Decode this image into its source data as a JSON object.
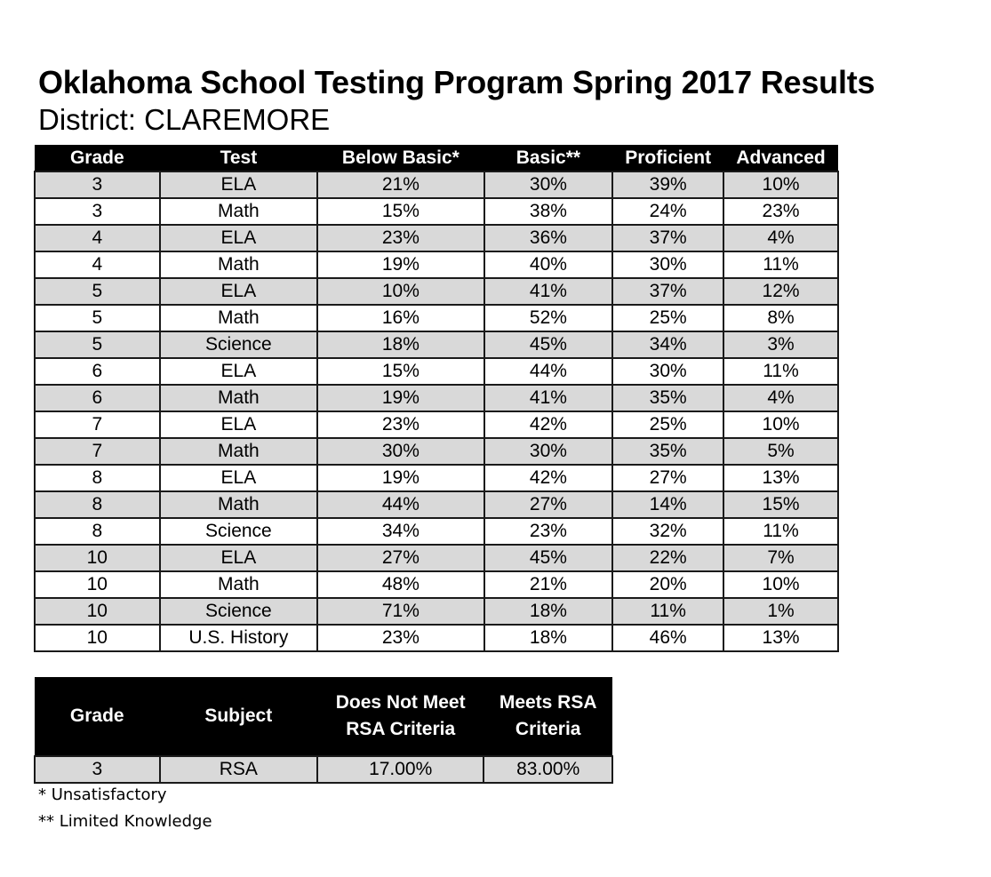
{
  "header": {
    "title": "Oklahoma School Testing Program Spring 2017 Results",
    "subtitle": "District: CLAREMORE"
  },
  "main_table": {
    "columns": [
      "Grade",
      "Test",
      "Below Basic*",
      "Basic**",
      "Proficient",
      "Advanced"
    ],
    "rows": [
      [
        "3",
        "ELA",
        "21%",
        "30%",
        "39%",
        "10%"
      ],
      [
        "3",
        "Math",
        "15%",
        "38%",
        "24%",
        "23%"
      ],
      [
        "4",
        "ELA",
        "23%",
        "36%",
        "37%",
        "4%"
      ],
      [
        "4",
        "Math",
        "19%",
        "40%",
        "30%",
        "11%"
      ],
      [
        "5",
        "ELA",
        "10%",
        "41%",
        "37%",
        "12%"
      ],
      [
        "5",
        "Math",
        "16%",
        "52%",
        "25%",
        "8%"
      ],
      [
        "5",
        "Science",
        "18%",
        "45%",
        "34%",
        "3%"
      ],
      [
        "6",
        "ELA",
        "15%",
        "44%",
        "30%",
        "11%"
      ],
      [
        "6",
        "Math",
        "19%",
        "41%",
        "35%",
        "4%"
      ],
      [
        "7",
        "ELA",
        "23%",
        "42%",
        "25%",
        "10%"
      ],
      [
        "7",
        "Math",
        "30%",
        "30%",
        "35%",
        "5%"
      ],
      [
        "8",
        "ELA",
        "19%",
        "42%",
        "27%",
        "13%"
      ],
      [
        "8",
        "Math",
        "44%",
        "27%",
        "14%",
        "15%"
      ],
      [
        "8",
        "Science",
        "34%",
        "23%",
        "32%",
        "11%"
      ],
      [
        "10",
        "ELA",
        "27%",
        "45%",
        "22%",
        "7%"
      ],
      [
        "10",
        "Math",
        "48%",
        "21%",
        "20%",
        "10%"
      ],
      [
        "10",
        "Science",
        "71%",
        "18%",
        "11%",
        "1%"
      ],
      [
        "10",
        "U.S. History",
        "23%",
        "18%",
        "46%",
        "13%"
      ]
    ]
  },
  "rsa_table": {
    "columns": [
      {
        "line1": "Grade",
        "line2": ""
      },
      {
        "line1": "Subject",
        "line2": ""
      },
      {
        "line1": "Does Not Meet",
        "line2": "RSA Criteria"
      },
      {
        "line1": "Meets RSA",
        "line2": "Criteria"
      }
    ],
    "rows": [
      [
        "3",
        "RSA",
        "17.00%",
        "83.00%"
      ]
    ]
  },
  "footnotes": [
    "* Unsatisfactory",
    "** Limited Knowledge"
  ],
  "colors": {
    "header_bg": "#000000",
    "header_text": "#ffffff",
    "shaded_row": "#d9d9d9",
    "plain_row": "#ffffff",
    "border": "#1a1a1a"
  }
}
